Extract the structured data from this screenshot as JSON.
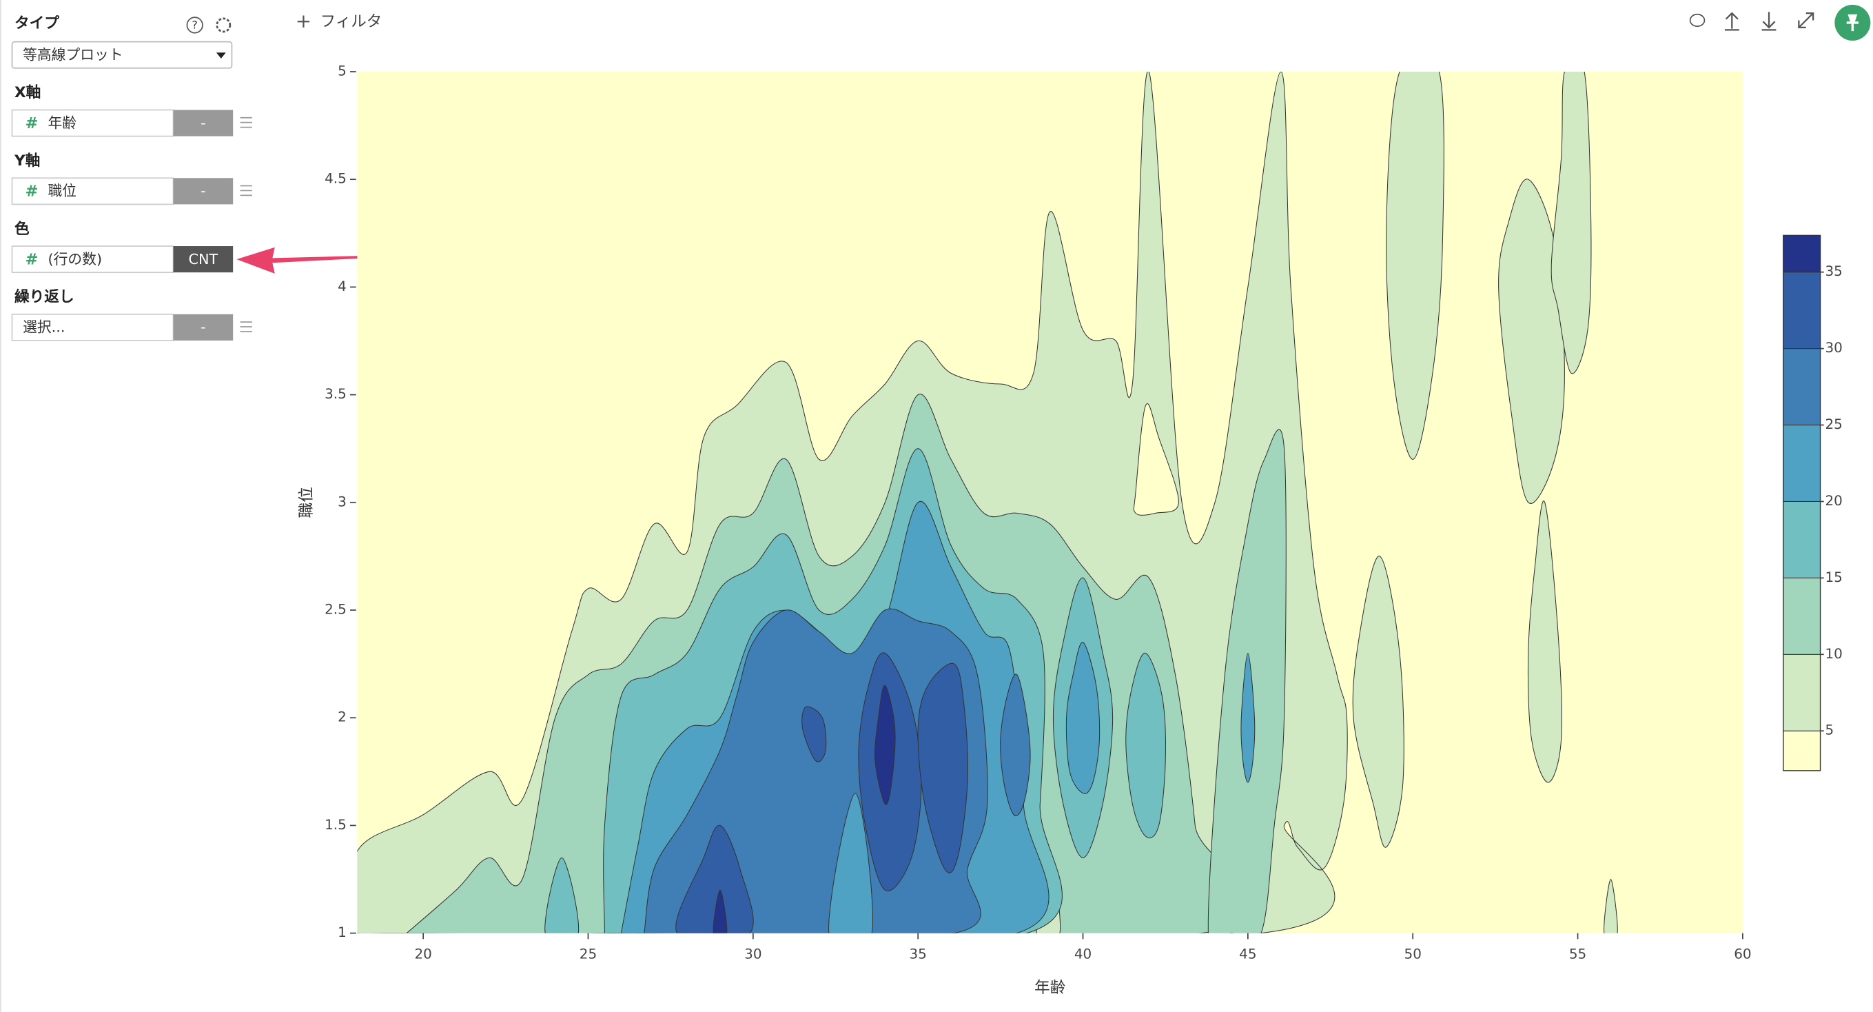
{
  "sidebar": {
    "type_label": "タイプ",
    "type_value": "等高線プロット",
    "x_label": "X軸",
    "x_field": "年齢",
    "x_agg": "-",
    "y_label": "Y軸",
    "y_field": "職位",
    "y_agg": "-",
    "color_label": "色",
    "color_field": "(行の数)",
    "color_agg": "CNT",
    "repeat_label": "繰り返し",
    "repeat_field": "選択...",
    "repeat_agg": "-"
  },
  "toolbar": {
    "filter": "フィルタ"
  },
  "chart_data": {
    "type": "contour",
    "x_label": "年齢",
    "y_label": "職位",
    "xlim": [
      18,
      60
    ],
    "xticks": [
      20,
      25,
      30,
      35,
      40,
      45,
      50,
      55,
      60
    ],
    "ylim": [
      1,
      5
    ],
    "yticks": [
      1,
      1.5,
      2,
      2.5,
      3,
      3.5,
      4,
      4.5,
      5
    ],
    "levels": [
      0,
      5,
      10,
      15,
      20,
      25,
      30,
      35
    ],
    "level_colors": [
      "#ffffcc",
      "#d1eac4",
      "#a1d6bd",
      "#71bfc0",
      "#4fa2c4",
      "#3f7fb6",
      "#325ea6",
      "#24338a"
    ],
    "colorbar_lim": [
      2.4,
      37.4
    ],
    "colorbar_ticks": [
      5,
      10,
      15,
      20,
      25,
      30,
      35
    ],
    "contours": [
      {
        "level": 5,
        "x": [
          18,
          20,
          22,
          23,
          24.5,
          25,
          26,
          27,
          28,
          28.5,
          29.5,
          31,
          32,
          33,
          34,
          35,
          36,
          37.5,
          38.5,
          39,
          40,
          41,
          41.5,
          42,
          43,
          44,
          45,
          46,
          46.3,
          47,
          47.7,
          48,
          47.9,
          47.3,
          46.5,
          46.1,
          45.4,
          18
        ],
        "y": [
          1.38,
          1.55,
          1.75,
          1.62,
          2.4,
          2.6,
          2.55,
          2.9,
          2.77,
          3.3,
          3.45,
          3.65,
          3.2,
          3.4,
          3.55,
          3.75,
          3.6,
          3.55,
          3.6,
          4.35,
          3.8,
          3.75,
          3.55,
          5,
          3.0,
          3.0,
          4.0,
          5,
          4.0,
          2.7,
          2.2,
          2.0,
          1.6,
          1.3,
          1.4,
          1.5,
          1.0,
          1.0
        ]
      },
      {
        "level": 0,
        "x": [
          41.6,
          41.9,
          42.3,
          42.9,
          42.2,
          41.6
        ],
        "y": [
          3.05,
          3.45,
          3.3,
          3.0,
          2.95,
          2.95
        ]
      },
      {
        "level": 5,
        "x": [
          49,
          49.6,
          49.7,
          49.2,
          48.8,
          48.2,
          48.4
        ],
        "y": [
          2.75,
          2.3,
          1.7,
          1.4,
          1.6,
          2.0,
          2.4
        ]
      },
      {
        "level": 5,
        "x": [
          49.6,
          50.8,
          50.9,
          50.6,
          50,
          49.4,
          49.2
        ],
        "y": [
          5,
          5,
          4.2,
          3.6,
          3.2,
          3.6,
          4.3
        ]
      },
      {
        "level": 5,
        "x": [
          53.5,
          54.3,
          54.6,
          54.3,
          53.5,
          53,
          52.6,
          52.9
        ],
        "y": [
          4.5,
          4.2,
          3.6,
          3.2,
          3.0,
          3.4,
          4.0,
          4.3
        ]
      },
      {
        "level": 5,
        "x": [
          54.6,
          55.2,
          55.4,
          55.3,
          54.8,
          54.4,
          54.2,
          54.5
        ],
        "y": [
          5,
          5,
          4.3,
          3.8,
          3.6,
          3.9,
          4.1,
          4.6
        ]
      },
      {
        "level": 5,
        "x": [
          54,
          54.4,
          54.5,
          54.1,
          53.6,
          53.5,
          53.7
        ],
        "y": [
          3.0,
          2.4,
          1.9,
          1.7,
          1.9,
          2.3,
          2.7
        ]
      },
      {
        "level": 5,
        "x": [
          55.8,
          56.0,
          56.2
        ],
        "y": [
          1,
          1.25,
          1
        ]
      },
      {
        "level": 10,
        "x": [
          19.5,
          21,
          22,
          23,
          24,
          25,
          26,
          27,
          28,
          29,
          30,
          31,
          32,
          33,
          34,
          35,
          36,
          37,
          38,
          39,
          40,
          41,
          42,
          42.8,
          43.4,
          43.6,
          19.5
        ],
        "y": [
          1,
          1.2,
          1.35,
          1.25,
          2.0,
          2.2,
          2.25,
          2.45,
          2.5,
          2.9,
          2.95,
          3.2,
          2.75,
          2.75,
          3.0,
          3.5,
          3.2,
          2.95,
          2.95,
          2.9,
          2.7,
          2.55,
          2.65,
          2.2,
          1.5,
          1,
          1
        ]
      },
      {
        "level": 10,
        "x": [
          43.8,
          44.3,
          45,
          45.5,
          46.1,
          46.1,
          45.8,
          45.4,
          44.5
        ],
        "y": [
          1,
          2.2,
          2.9,
          3.2,
          3.25,
          2.0,
          1.5,
          1.0,
          1
        ]
      },
      {
        "level": 5,
        "x": [
          38.6,
          39,
          39.3
        ],
        "y": [
          1,
          1.35,
          1
        ]
      },
      {
        "level": 15,
        "x": [
          25.5,
          25.5,
          26,
          27,
          28,
          29,
          30,
          31,
          32,
          33,
          34,
          35,
          36,
          37,
          38,
          38.8,
          38.7,
          38.3,
          25.5
        ],
        "y": [
          1,
          1.5,
          2.1,
          2.2,
          2.3,
          2.6,
          2.7,
          2.85,
          2.5,
          2.55,
          2.8,
          3.25,
          2.8,
          2.6,
          2.55,
          2.3,
          1.6,
          1.0,
          1
        ]
      },
      {
        "level": 15,
        "x": [
          40,
          40.6,
          40.9,
          40.6,
          40,
          39.4,
          39.1,
          39.4
        ],
        "y": [
          2.65,
          2.3,
          2.0,
          1.6,
          1.35,
          1.6,
          2.0,
          2.35
        ]
      },
      {
        "level": 15,
        "x": [
          41.9,
          42.4,
          42.5,
          42.3,
          41.9,
          41.5,
          41.3,
          41.5
        ],
        "y": [
          2.3,
          2.1,
          1.8,
          1.5,
          1.45,
          1.6,
          1.9,
          2.15
        ]
      },
      {
        "level": 15,
        "x": [
          23.7,
          24.2,
          24.7
        ],
        "y": [
          1,
          1.35,
          1
        ]
      },
      {
        "level": 20,
        "x": [
          26,
          26.5,
          27,
          28,
          29,
          30,
          31,
          32,
          33,
          34,
          35,
          36,
          37,
          37.8,
          38.2,
          38,
          26
        ],
        "y": [
          1,
          1.4,
          1.75,
          1.95,
          2.0,
          2.4,
          2.5,
          2.4,
          2.25,
          2.45,
          3.0,
          2.7,
          2.4,
          2.3,
          1.6,
          1,
          1
        ]
      },
      {
        "level": 20,
        "x": [
          40,
          40.4,
          40.5,
          40.3,
          40,
          39.6,
          39.5,
          39.7
        ],
        "y": [
          2.35,
          2.15,
          1.9,
          1.7,
          1.65,
          1.75,
          2.0,
          2.2
        ]
      },
      {
        "level": 20,
        "x": [
          45,
          45.2,
          45.15,
          45,
          44.85,
          44.8
        ],
        "y": [
          2.3,
          2.0,
          1.8,
          1.7,
          1.8,
          2.0
        ]
      },
      {
        "level": 25,
        "x": [
          26.7,
          27,
          28,
          29,
          29.5,
          30,
          31,
          32,
          33,
          34,
          35,
          36,
          36.8,
          37.1,
          36.5,
          36.1,
          26.7
        ],
        "y": [
          1,
          1.3,
          1.55,
          1.85,
          2.1,
          2.35,
          2.5,
          2.4,
          2.3,
          2.5,
          2.45,
          2.4,
          2.2,
          1.6,
          1.3,
          1,
          1
        ]
      },
      {
        "level": 20,
        "x": [
          32.3,
          33.1,
          33.6
        ],
        "y": [
          1,
          1.65,
          1
        ]
      },
      {
        "level": 25,
        "x": [
          38,
          38.3,
          38.4,
          38.2,
          37.9,
          37.6,
          37.5,
          37.7
        ],
        "y": [
          2.2,
          2.0,
          1.8,
          1.6,
          1.55,
          1.7,
          1.9,
          2.1
        ]
      },
      {
        "level": 30,
        "x": [
          34,
          34.8,
          35.1,
          34.8,
          34,
          33.4,
          33.2,
          33.5
        ],
        "y": [
          2.3,
          2.05,
          1.7,
          1.35,
          1.2,
          1.5,
          1.85,
          2.15
        ]
      },
      {
        "level": 30,
        "x": [
          36.1,
          36.4,
          36.5,
          36.2,
          35.8,
          35.2,
          35.0,
          35.3
        ],
        "y": [
          2.25,
          2.05,
          1.7,
          1.35,
          1.3,
          1.6,
          1.95,
          2.15
        ]
      },
      {
        "level": 30,
        "x": [
          31.6,
          32.1,
          32.2,
          31.9,
          31.5
        ],
        "y": [
          2.05,
          2.0,
          1.85,
          1.8,
          1.95
        ]
      },
      {
        "level": 30,
        "x": [
          27.7,
          28.5,
          29,
          29.6,
          29.9
        ],
        "y": [
          1,
          1.35,
          1.5,
          1.3,
          1
        ]
      },
      {
        "level": 35,
        "x": [
          34,
          34.3,
          34.2,
          34,
          33.7,
          33.8
        ],
        "y": [
          2.15,
          1.95,
          1.7,
          1.6,
          1.8,
          2.0
        ]
      },
      {
        "level": 35,
        "x": [
          28.8,
          29,
          29.2
        ],
        "y": [
          1,
          1.2,
          1
        ]
      }
    ]
  }
}
